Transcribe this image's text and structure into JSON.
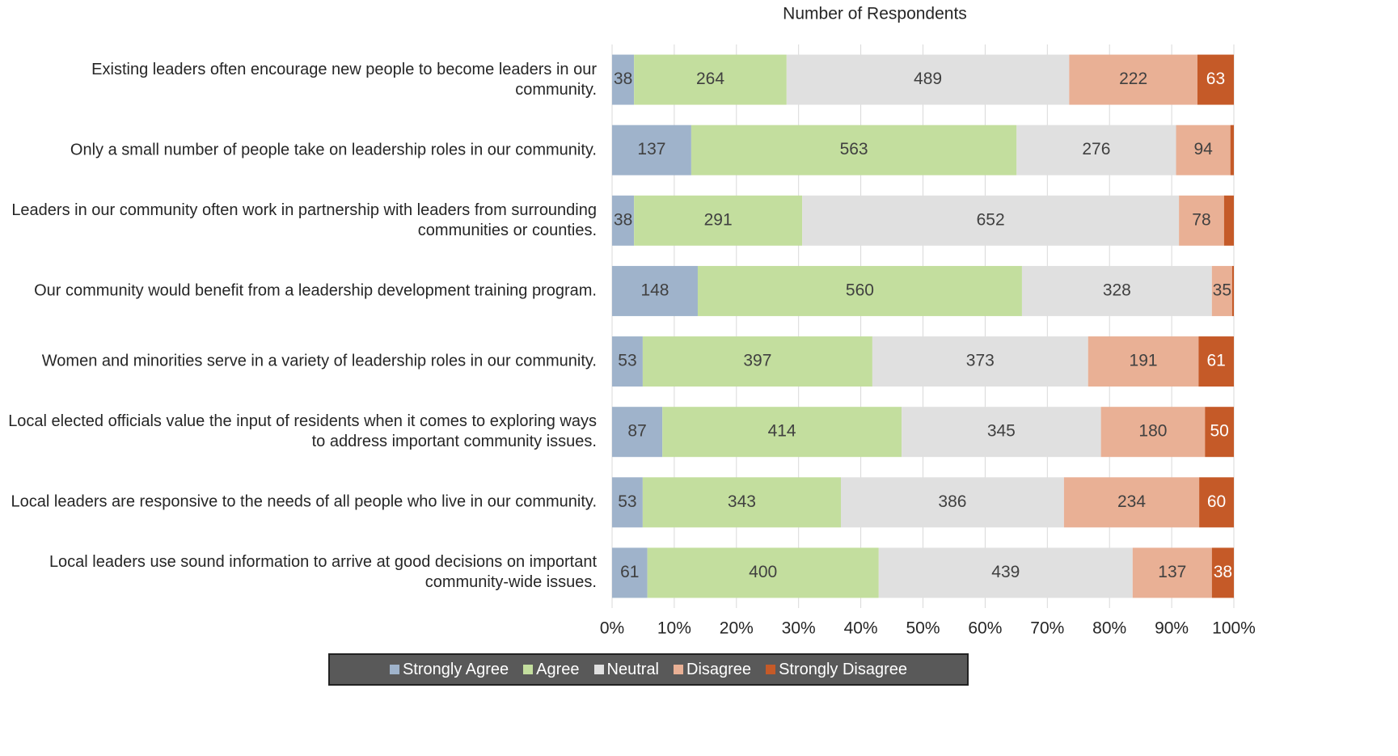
{
  "chart_data": {
    "type": "stacked-percent-barh",
    "title": "Number of Respondents",
    "categories": [
      "Existing leaders often encourage new people to become leaders in our community.",
      "Only a small number of people take on leadership roles in our community.",
      "Leaders in our community often work in partnership with leaders from surrounding communities or counties.",
      "Our community would benefit from a leadership development training program.",
      "Women and minorities serve in a variety of leadership roles in our community.",
      "Local elected officials value the input of residents when it comes to exploring ways to address important community issues.",
      "Local leaders are responsive to the needs of all people who live in our community.",
      "Local leaders use sound information to arrive at good decisions on important community-wide issues."
    ],
    "series": [
      {
        "name": "Strongly Agree",
        "color": "#9fb3cb",
        "values": [
          38,
          137,
          38,
          148,
          53,
          87,
          53,
          61
        ]
      },
      {
        "name": "Agree",
        "color": "#c3de9e",
        "values": [
          264,
          563,
          291,
          560,
          397,
          414,
          343,
          400
        ]
      },
      {
        "name": "Neutral",
        "color": "#e0e0e0",
        "values": [
          489,
          276,
          652,
          328,
          373,
          345,
          386,
          439
        ]
      },
      {
        "name": "Disagree",
        "color": "#e9b095",
        "values": [
          222,
          94,
          78,
          35,
          191,
          180,
          234,
          137
        ]
      },
      {
        "name": "Strongly Disagree",
        "color": "#c55a28",
        "values": [
          63,
          6,
          17,
          3,
          61,
          50,
          60,
          38
        ]
      }
    ],
    "xlim": [
      0,
      100
    ],
    "xticks": [
      {
        "value": 0,
        "label": "0%"
      },
      {
        "value": 10,
        "label": "10%"
      },
      {
        "value": 20,
        "label": "20%"
      },
      {
        "value": 30,
        "label": "30%"
      },
      {
        "value": 40,
        "label": "40%"
      },
      {
        "value": 50,
        "label": "50%"
      },
      {
        "value": 60,
        "label": "60%"
      },
      {
        "value": 70,
        "label": "70%"
      },
      {
        "value": 80,
        "label": "80%"
      },
      {
        "value": 90,
        "label": "90%"
      },
      {
        "value": 100,
        "label": "100%"
      }
    ],
    "grid": true,
    "legend": "bottom"
  }
}
